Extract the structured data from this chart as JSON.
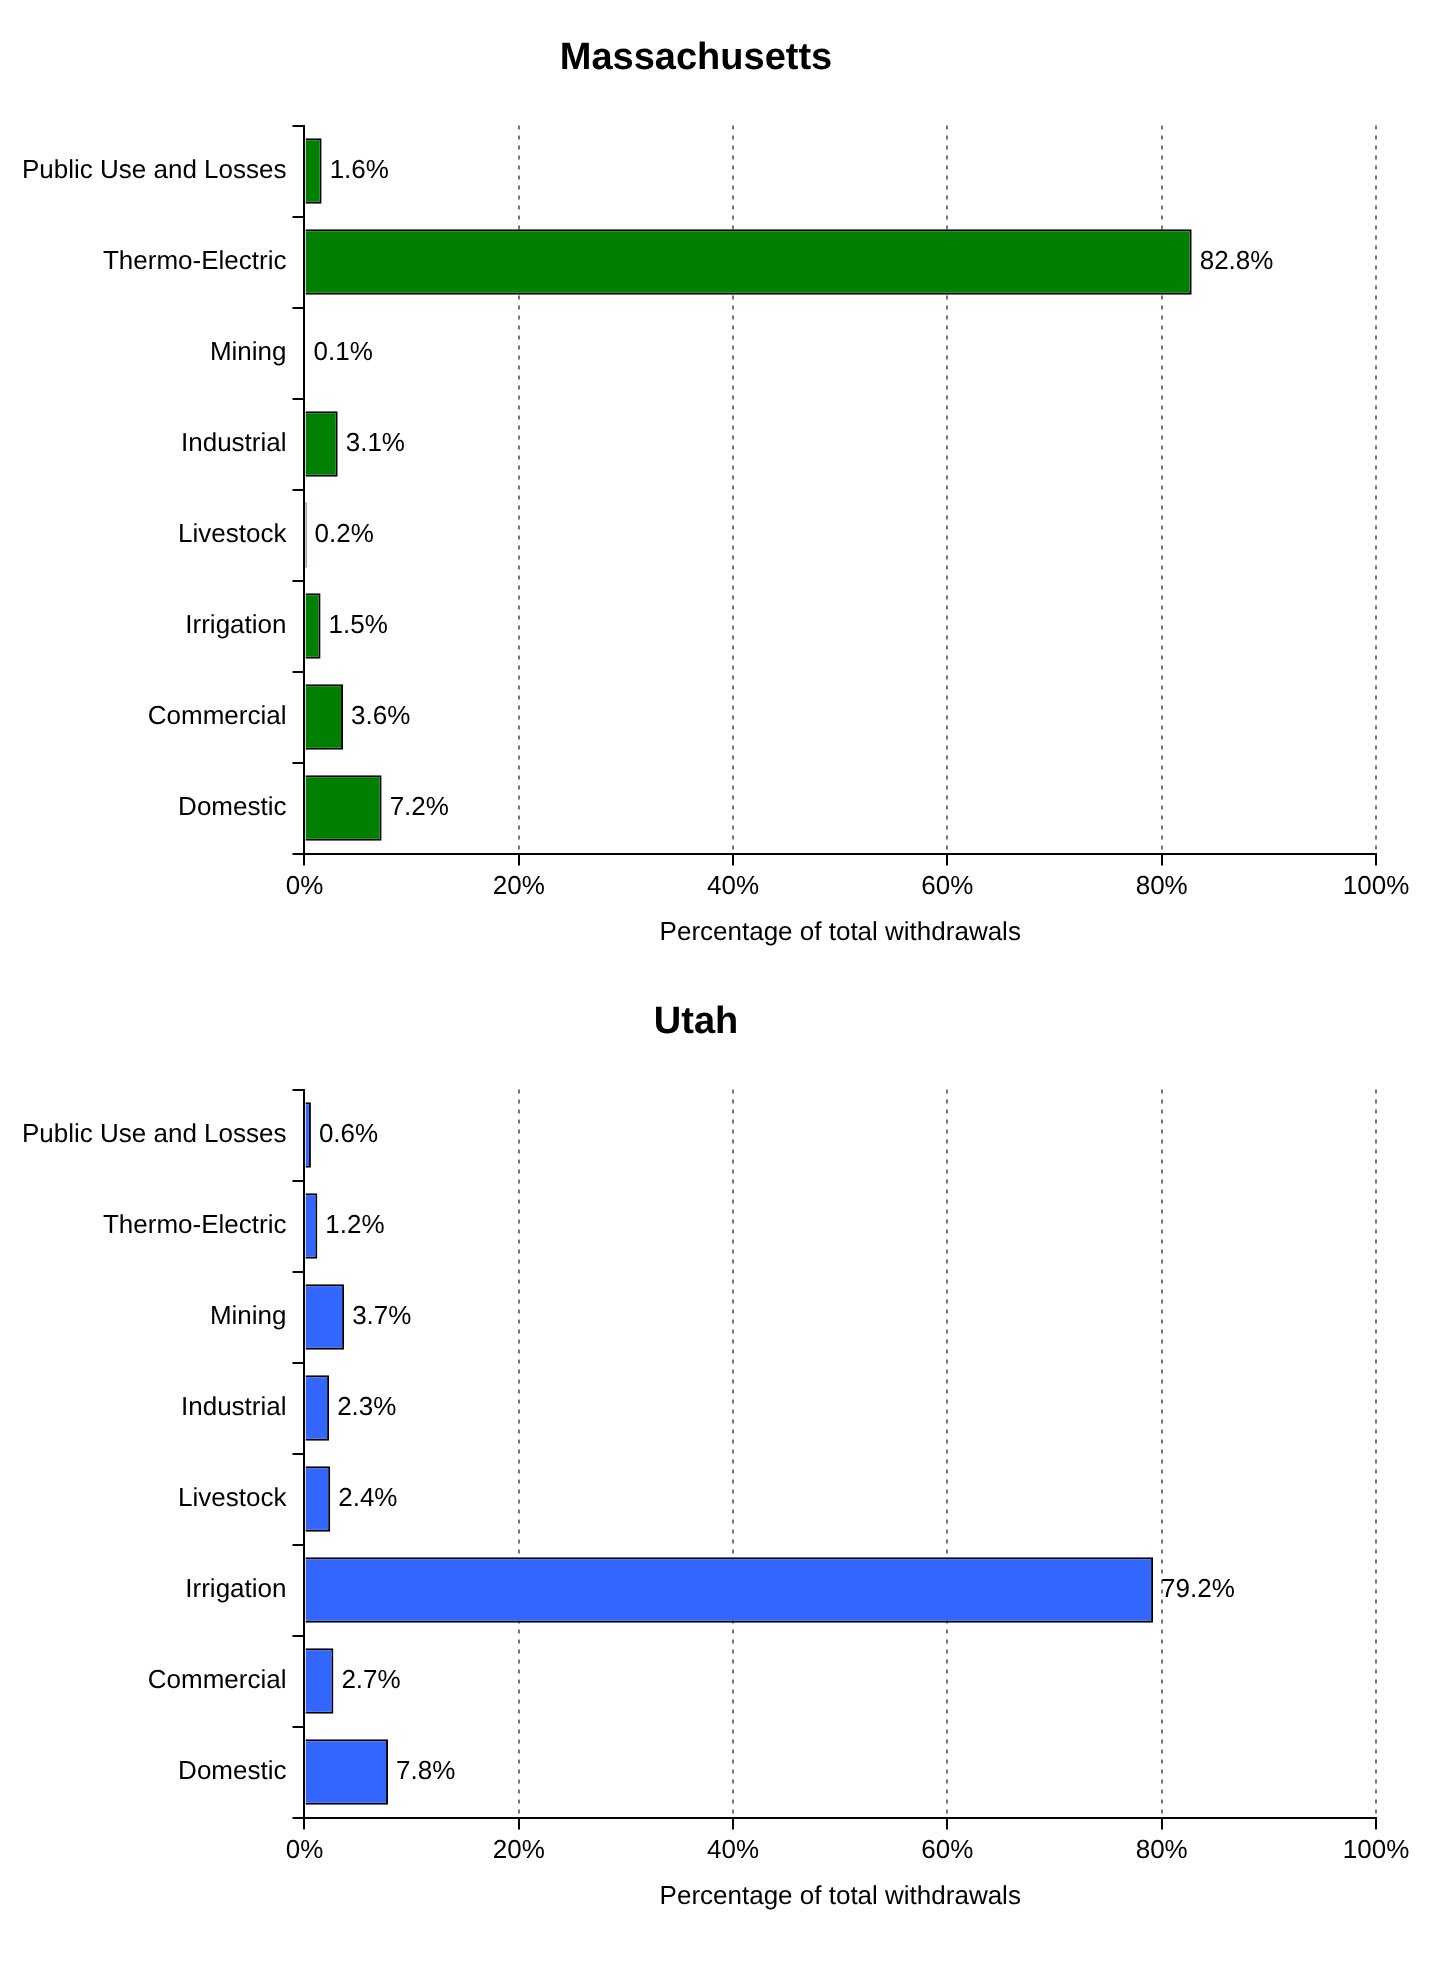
{
  "chart_data": [
    {
      "type": "bar",
      "orientation": "horizontal",
      "title": "Massachusetts",
      "xlabel": "Percentage of total withdrawals",
      "categories": [
        "Public Use and Losses",
        "Thermo-Electric",
        "Mining",
        "Industrial",
        "Livestock",
        "Irrigation",
        "Commercial",
        "Domestic"
      ],
      "values": [
        1.6,
        82.8,
        0.1,
        3.1,
        0.2,
        1.5,
        3.6,
        7.2
      ],
      "value_labels": [
        "1.6%",
        "82.8%",
        "0.1%",
        "3.1%",
        "0.2%",
        "1.5%",
        "3.6%",
        "7.2%"
      ],
      "color": "#008000",
      "xlim": [
        0,
        100
      ],
      "xticks": [
        {
          "value": 0,
          "label": "0%"
        },
        {
          "value": 20,
          "label": "20%"
        },
        {
          "value": 40,
          "label": "40%"
        },
        {
          "value": 60,
          "label": "60%"
        },
        {
          "value": 80,
          "label": "80%"
        },
        {
          "value": 100,
          "label": "100%"
        }
      ],
      "grid": "x",
      "legend": false
    },
    {
      "type": "bar",
      "orientation": "horizontal",
      "title": "Utah",
      "xlabel": "Percentage of total withdrawals",
      "categories": [
        "Public Use and Losses",
        "Thermo-Electric",
        "Mining",
        "Industrial",
        "Livestock",
        "Irrigation",
        "Commercial",
        "Domestic"
      ],
      "values": [
        0.6,
        1.2,
        3.7,
        2.3,
        2.4,
        79.2,
        2.7,
        7.8
      ],
      "value_labels": [
        "0.6%",
        "1.2%",
        "3.7%",
        "2.3%",
        "2.4%",
        "79.2%",
        "2.7%",
        "7.8%"
      ],
      "color": "#3366ff",
      "xlim": [
        0,
        100
      ],
      "xticks": [
        {
          "value": 0,
          "label": "0%"
        },
        {
          "value": 20,
          "label": "20%"
        },
        {
          "value": 40,
          "label": "40%"
        },
        {
          "value": 60,
          "label": "60%"
        },
        {
          "value": 80,
          "label": "80%"
        },
        {
          "value": 100,
          "label": "100%"
        }
      ],
      "grid": "x",
      "legend": false
    }
  ]
}
